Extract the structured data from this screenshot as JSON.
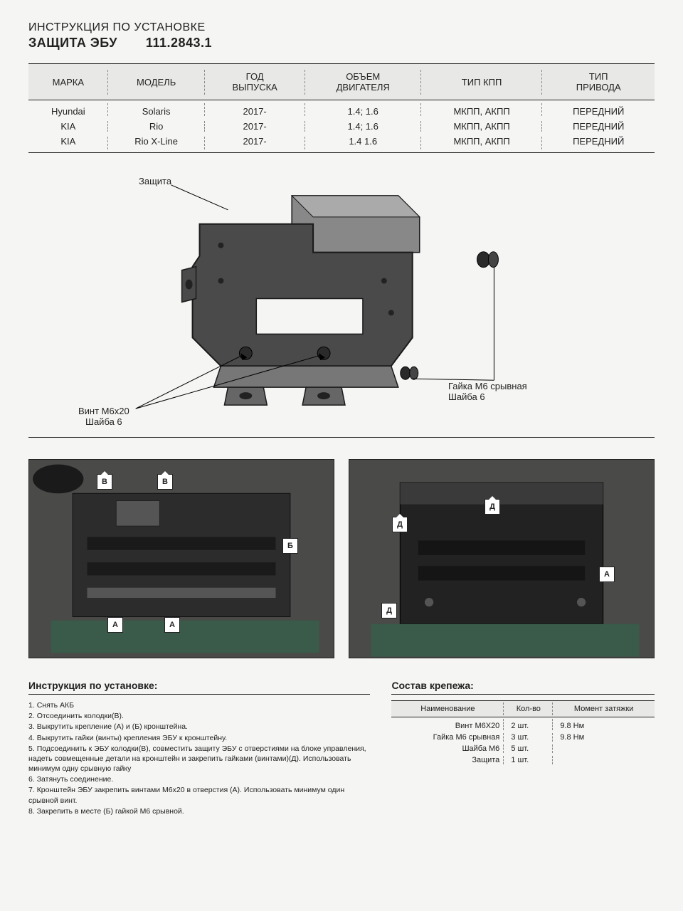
{
  "header": {
    "subtitle": "ИНСТРУКЦИЯ ПО УСТАНОВКЕ",
    "title": "ЗАЩИТА ЭБУ",
    "partno": "111.2843.1"
  },
  "vehicle_table": {
    "columns": [
      "МАРКА",
      "МОДЕЛЬ",
      "ГОД\nВЫПУСКА",
      "ОБЪЕМ\nДВИГАТЕЛЯ",
      "ТИП КПП",
      "ТИП\nПРИВОДА"
    ],
    "rows": [
      [
        "Hyundai",
        "Solaris",
        "2017-",
        "1.4; 1.6",
        "МКПП, АКПП",
        "ПЕРЕДНИЙ"
      ],
      [
        "KIA",
        "Rio",
        "2017-",
        "1.4; 1.6",
        "МКПП, АКПП",
        "ПЕРЕДНИЙ"
      ],
      [
        "KIA",
        "Rio X-Line",
        "2017-",
        "1.4 1.6",
        "МКПП, АКПП",
        "ПЕРЕДНИЙ"
      ]
    ]
  },
  "diagram": {
    "label_guard": "Защита",
    "label_screw": "Винт М6х20\nШайба 6",
    "label_nut": "Гайка М6 срывная\nШайба 6",
    "colors": {
      "fill": "#4a4a4a",
      "stroke": "#1a1a1a",
      "light": "#888"
    }
  },
  "photo_markers": {
    "left": [
      "В",
      "В",
      "Б",
      "А",
      "А"
    ],
    "right": [
      "Д",
      "Д",
      "А",
      "Д"
    ]
  },
  "instructions": {
    "title": "Инструкция по установке:",
    "steps": [
      "Снять АКБ",
      "Отсоединить колодки(В).",
      "Выкрутить крепление (А) и (Б) кронштейна.",
      "Выкрутить гайки (винты) крепления ЭБУ к кронштейну.",
      "Подсоединить к ЭБУ колодки(В), совместить защиту ЭБУ с отверстиями на блоке управления, надеть совмещенные детали на кронштейн и закрепить гайками (винтами)(Д). Использовать минимум одну срывную гайку",
      "Затянуть соединение.",
      "Кронштейн ЭБУ закрепить винтами М6х20 в отверстия (А). Использовать минимум один срывной винт.",
      "Закрепить в месте (Б) гайкой М6 срывной."
    ]
  },
  "hardware": {
    "title": "Состав крепежа:",
    "columns": [
      "Наименование",
      "Кол-во",
      "Момент затяжки"
    ],
    "rows": [
      [
        "Винт М6Х20",
        "2 шт.",
        "9.8 Нм"
      ],
      [
        "Гайка М6 срывная",
        "3 шт.",
        "9.8 Нм"
      ],
      [
        "Шайба М6",
        "5 шт.",
        ""
      ],
      [
        "Защита",
        "1 шт.",
        ""
      ]
    ]
  }
}
